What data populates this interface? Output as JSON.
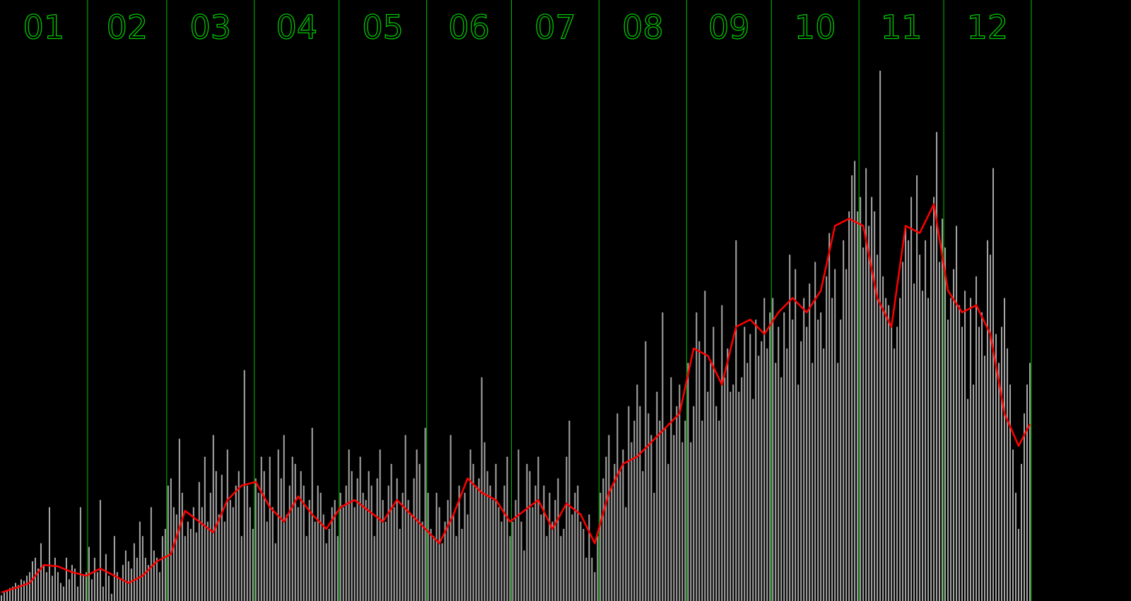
{
  "chart_data": {
    "type": "bar",
    "months": [
      "01",
      "02",
      "03",
      "04",
      "05",
      "06",
      "07",
      "08",
      "09",
      "10",
      "11",
      "12"
    ],
    "xticks": [
      31,
      59,
      90,
      120,
      151,
      181,
      212,
      243,
      273,
      304,
      334,
      365
    ],
    "xlim": [
      0,
      365
    ],
    "ylim": [
      0,
      833
    ],
    "color": "#a8a8a8",
    "divider_color": "#00c000",
    "values": [
      8,
      12,
      15,
      18,
      20,
      25,
      22,
      30,
      28,
      35,
      40,
      55,
      60,
      45,
      80,
      50,
      40,
      130,
      35,
      60,
      40,
      25,
      20,
      60,
      30,
      50,
      45,
      20,
      130,
      35,
      40,
      75,
      30,
      60,
      40,
      140,
      20,
      65,
      35,
      10,
      90,
      40,
      30,
      50,
      70,
      55,
      45,
      80,
      60,
      110,
      90,
      60,
      50,
      130,
      70,
      60,
      40,
      90,
      100,
      160,
      170,
      130,
      120,
      225,
      150,
      90,
      110,
      100,
      130,
      95,
      165,
      130,
      200,
      110,
      150,
      230,
      180,
      120,
      175,
      110,
      210,
      140,
      130,
      160,
      180,
      90,
      320,
      160,
      130,
      100,
      170,
      150,
      200,
      180,
      110,
      200,
      130,
      80,
      210,
      170,
      230,
      120,
      160,
      200,
      190,
      130,
      180,
      160,
      90,
      140,
      240,
      110,
      160,
      150,
      120,
      80,
      100,
      130,
      140,
      90,
      150,
      130,
      160,
      210,
      180,
      130,
      170,
      200,
      150,
      140,
      180,
      160,
      90,
      170,
      210,
      140,
      110,
      160,
      190,
      130,
      170,
      100,
      150,
      230,
      140,
      120,
      170,
      210,
      190,
      110,
      240,
      150,
      100,
      90,
      150,
      130,
      80,
      110,
      140,
      230,
      120,
      90,
      160,
      100,
      150,
      120,
      210,
      190,
      160,
      170,
      310,
      220,
      180,
      160,
      140,
      190,
      130,
      110,
      160,
      200,
      90,
      110,
      140,
      210,
      110,
      70,
      190,
      180,
      130,
      160,
      200,
      120,
      160,
      90,
      150,
      110,
      140,
      170,
      90,
      100,
      200,
      250,
      120,
      150,
      160,
      110,
      100,
      60,
      120,
      60,
      40,
      90,
      150,
      170,
      200,
      230,
      160,
      190,
      260,
      180,
      210,
      130,
      270,
      220,
      250,
      300,
      270,
      180,
      360,
      260,
      230,
      150,
      290,
      250,
      400,
      240,
      190,
      310,
      230,
      270,
      300,
      220,
      250,
      330,
      220,
      270,
      400,
      360,
      250,
      430,
      290,
      330,
      380,
      270,
      250,
      410,
      310,
      350,
      290,
      300,
      500,
      290,
      310,
      380,
      330,
      370,
      280,
      390,
      340,
      360,
      420,
      350,
      400,
      420,
      330,
      380,
      310,
      400,
      350,
      480,
      390,
      460,
      300,
      360,
      420,
      380,
      440,
      330,
      470,
      390,
      400,
      350,
      450,
      510,
      420,
      460,
      330,
      390,
      500,
      460,
      540,
      590,
      610,
      540,
      560,
      490,
      600,
      520,
      560,
      540,
      480,
      735,
      450,
      420,
      410,
      380,
      350,
      380,
      420,
      470,
      520,
      500,
      560,
      440,
      590,
      480,
      430,
      500,
      420,
      520,
      560,
      650,
      470,
      530,
      490,
      390,
      420,
      460,
      520,
      410,
      380,
      430,
      280,
      420,
      300,
      450,
      380,
      400,
      340,
      500,
      480,
      600,
      370,
      330,
      380,
      420,
      350,
      300,
      210,
      150,
      100,
      190,
      260,
      300,
      330
    ],
    "line": {
      "color": "#ff0000",
      "x": [
        0,
        5,
        10,
        15,
        20,
        25,
        30,
        35,
        40,
        45,
        50,
        55,
        60,
        65,
        70,
        75,
        80,
        85,
        90,
        95,
        100,
        105,
        110,
        115,
        120,
        125,
        130,
        135,
        140,
        145,
        150,
        155,
        160,
        165,
        170,
        175,
        180,
        185,
        190,
        195,
        200,
        205,
        210,
        215,
        220,
        225,
        230,
        235,
        240,
        245,
        250,
        255,
        260,
        265,
        270,
        275,
        280,
        285,
        290,
        295,
        300,
        305,
        310,
        315,
        320,
        325,
        330,
        335,
        340,
        345,
        350,
        355,
        360,
        364
      ],
      "values": [
        12,
        18,
        25,
        50,
        48,
        40,
        35,
        45,
        35,
        25,
        35,
        55,
        65,
        125,
        110,
        95,
        140,
        160,
        165,
        130,
        110,
        145,
        120,
        100,
        130,
        140,
        125,
        110,
        140,
        120,
        100,
        80,
        120,
        170,
        150,
        140,
        110,
        125,
        140,
        100,
        135,
        120,
        80,
        150,
        190,
        200,
        220,
        240,
        260,
        350,
        340,
        300,
        380,
        390,
        370,
        400,
        420,
        400,
        430,
        520,
        530,
        520,
        420,
        380,
        520,
        510,
        550,
        430,
        400,
        410,
        370,
        260,
        215,
        245
      ]
    }
  }
}
